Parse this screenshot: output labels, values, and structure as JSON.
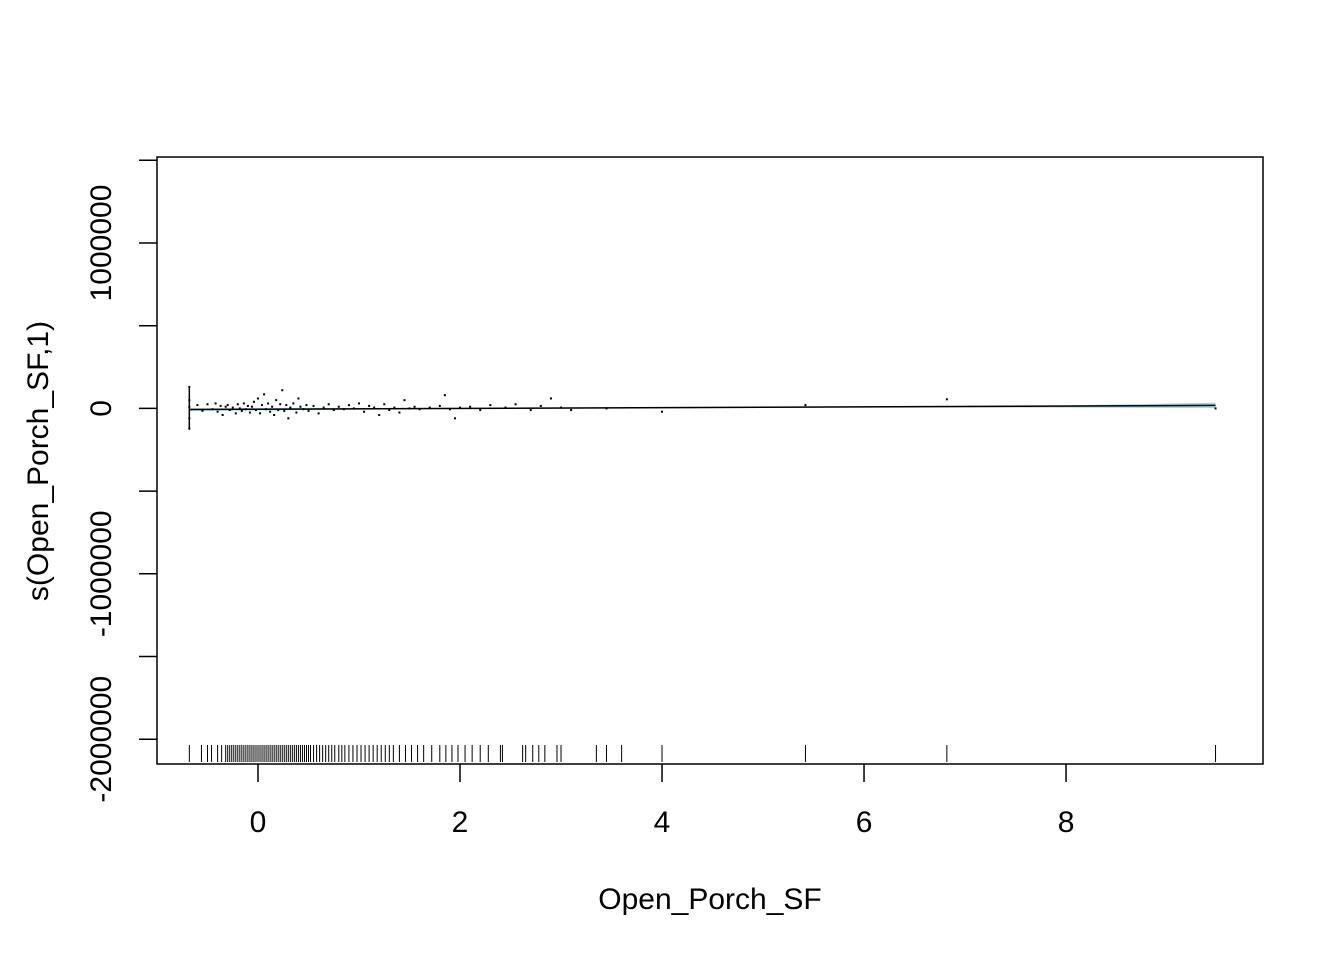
{
  "chart_data": {
    "type": "line",
    "xlabel": "Open_Porch_SF",
    "ylabel": "s(Open_Porch_SF,1)",
    "xlim": [
      -1.0,
      9.95
    ],
    "ylim": [
      -2150000,
      1520000
    ],
    "x_ticks": [
      {
        "value": 0,
        "label": "0"
      },
      {
        "value": 2,
        "label": "2"
      },
      {
        "value": 4,
        "label": "4"
      },
      {
        "value": 6,
        "label": "6"
      },
      {
        "value": 8,
        "label": "8"
      }
    ],
    "y_ticks": [
      {
        "value": -2000000,
        "label": "-2000000"
      },
      {
        "value": -1500000,
        "label": ""
      },
      {
        "value": -1000000,
        "label": "-1000000"
      },
      {
        "value": -500000,
        "label": ""
      },
      {
        "value": 0,
        "label": "0"
      },
      {
        "value": 500000,
        "label": ""
      },
      {
        "value": 1000000,
        "label": "1000000"
      },
      {
        "value": 1500000,
        "label": ""
      }
    ],
    "smooth": {
      "x": [
        -0.68,
        9.48
      ],
      "y": [
        -7000,
        18000
      ]
    },
    "confidence_band": {
      "color": "#a6d7e0",
      "x": [
        -0.68,
        2.0,
        4.0,
        6.0,
        8.0,
        9.48
      ],
      "upper": [
        1000,
        4000,
        5000,
        9000,
        18000,
        35000
      ],
      "lower": [
        -15000,
        -3000,
        0,
        5000,
        5000,
        2000
      ]
    },
    "residual_points": [
      [
        -0.68,
        130000
      ],
      [
        -0.68,
        -120000
      ],
      [
        -0.68,
        50000
      ],
      [
        -0.68,
        -60000
      ],
      [
        -0.68,
        10000
      ],
      [
        -0.6,
        20000
      ],
      [
        -0.55,
        -15000
      ],
      [
        -0.5,
        25000
      ],
      [
        -0.45,
        -5000
      ],
      [
        -0.42,
        30000
      ],
      [
        -0.4,
        -20000
      ],
      [
        -0.37,
        15000
      ],
      [
        -0.35,
        -40000
      ],
      [
        -0.32,
        10000
      ],
      [
        -0.3,
        20000
      ],
      [
        -0.28,
        -10000
      ],
      [
        -0.25,
        5000
      ],
      [
        -0.22,
        -30000
      ],
      [
        -0.2,
        25000
      ],
      [
        -0.18,
        0
      ],
      [
        -0.16,
        -15000
      ],
      [
        -0.14,
        30000
      ],
      [
        -0.12,
        -5000
      ],
      [
        -0.1,
        15000
      ],
      [
        -0.08,
        -25000
      ],
      [
        -0.06,
        10000
      ],
      [
        -0.04,
        40000
      ],
      [
        -0.02,
        -10000
      ],
      [
        0.0,
        60000
      ],
      [
        0.02,
        -30000
      ],
      [
        0.04,
        20000
      ],
      [
        0.06,
        85000
      ],
      [
        0.08,
        -5000
      ],
      [
        0.1,
        30000
      ],
      [
        0.12,
        -20000
      ],
      [
        0.14,
        10000
      ],
      [
        0.16,
        -40000
      ],
      [
        0.18,
        50000
      ],
      [
        0.2,
        -10000
      ],
      [
        0.22,
        25000
      ],
      [
        0.24,
        110000
      ],
      [
        0.26,
        -15000
      ],
      [
        0.28,
        20000
      ],
      [
        0.3,
        -60000
      ],
      [
        0.32,
        5000
      ],
      [
        0.35,
        30000
      ],
      [
        0.38,
        -25000
      ],
      [
        0.4,
        60000
      ],
      [
        0.42,
        10000
      ],
      [
        0.45,
        -5000
      ],
      [
        0.48,
        20000
      ],
      [
        0.5,
        -15000
      ],
      [
        0.55,
        15000
      ],
      [
        0.6,
        -30000
      ],
      [
        0.65,
        5000
      ],
      [
        0.7,
        25000
      ],
      [
        0.75,
        -10000
      ],
      [
        0.8,
        10000
      ],
      [
        0.85,
        -5000
      ],
      [
        0.9,
        20000
      ],
      [
        0.95,
        0
      ],
      [
        1.0,
        30000
      ],
      [
        1.05,
        -20000
      ],
      [
        1.1,
        15000
      ],
      [
        1.15,
        5000
      ],
      [
        1.2,
        -40000
      ],
      [
        1.25,
        25000
      ],
      [
        1.3,
        -10000
      ],
      [
        1.35,
        5000
      ],
      [
        1.4,
        -25000
      ],
      [
        1.45,
        50000
      ],
      [
        1.5,
        0
      ],
      [
        1.55,
        10000
      ],
      [
        1.6,
        -5000
      ],
      [
        1.7,
        5000
      ],
      [
        1.8,
        15000
      ],
      [
        1.85,
        80000
      ],
      [
        1.9,
        -5000
      ],
      [
        1.95,
        -60000
      ],
      [
        2.0,
        5000
      ],
      [
        2.1,
        10000
      ],
      [
        2.2,
        -10000
      ],
      [
        2.3,
        20000
      ],
      [
        2.45,
        5000
      ],
      [
        2.55,
        25000
      ],
      [
        2.7,
        -10000
      ],
      [
        2.8,
        15000
      ],
      [
        2.9,
        60000
      ],
      [
        3.0,
        5000
      ],
      [
        3.1,
        -10000
      ],
      [
        3.45,
        0
      ],
      [
        4.0,
        -20000
      ],
      [
        5.42,
        20000
      ],
      [
        6.82,
        55000
      ],
      [
        9.48,
        0
      ]
    ],
    "rug_x": [
      -0.68,
      -0.56,
      -0.5,
      -0.46,
      -0.4,
      -0.36,
      -0.32,
      -0.3,
      -0.28,
      -0.26,
      -0.24,
      -0.22,
      -0.2,
      -0.18,
      -0.16,
      -0.14,
      -0.12,
      -0.1,
      -0.08,
      -0.06,
      -0.04,
      -0.02,
      0.0,
      0.02,
      0.04,
      0.06,
      0.08,
      0.1,
      0.12,
      0.14,
      0.16,
      0.18,
      0.2,
      0.22,
      0.24,
      0.26,
      0.28,
      0.3,
      0.32,
      0.34,
      0.36,
      0.38,
      0.4,
      0.42,
      0.44,
      0.46,
      0.48,
      0.5,
      0.52,
      0.55,
      0.58,
      0.61,
      0.64,
      0.67,
      0.7,
      0.73,
      0.76,
      0.8,
      0.83,
      0.86,
      0.9,
      0.94,
      0.98,
      1.02,
      1.06,
      1.1,
      1.14,
      1.18,
      1.22,
      1.26,
      1.3,
      1.34,
      1.4,
      1.46,
      1.52,
      1.58,
      1.64,
      1.72,
      1.8,
      1.86,
      1.92,
      1.98,
      2.05,
      2.12,
      2.2,
      2.28,
      2.4,
      2.42,
      2.62,
      2.65,
      2.72,
      2.78,
      2.84,
      2.96,
      3.0,
      3.35,
      3.45,
      3.6,
      4.0,
      5.42,
      6.82,
      9.48
    ]
  }
}
